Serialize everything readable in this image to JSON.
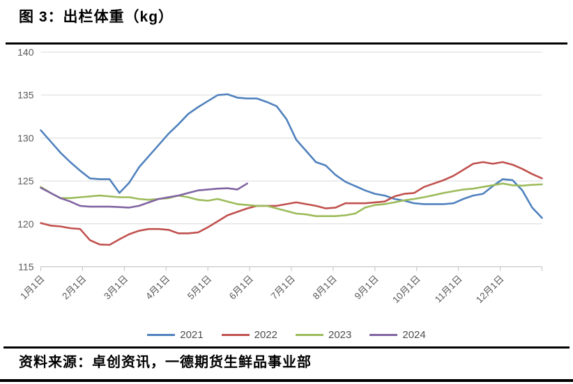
{
  "title": "图 3：出栏体重（kg）",
  "source": "资料来源：卓创资讯，一德期货生鲜品事业部",
  "colors": {
    "grid": "#d9d9d9",
    "axis": "#bfbfbf",
    "tick_text": "#595959",
    "series_2021": "#4f81bd",
    "series_2022": "#c0504d",
    "series_2023": "#9bbb59",
    "series_2024": "#8064a2"
  },
  "chart_data": {
    "type": "line",
    "title": "出栏体重（kg）",
    "grid": true,
    "legend_position": "bottom",
    "ylim": [
      115,
      140
    ],
    "y_ticks": [
      140,
      135,
      130,
      125,
      120,
      115
    ],
    "x_tick_labels": [
      "1月1日",
      "2月1日",
      "3月1日",
      "4月1日",
      "5月1日",
      "6月1日",
      "7月1日",
      "8月1日",
      "9月1日",
      "10月1日",
      "11月1日",
      "12月1日"
    ],
    "n_points": 52,
    "series": [
      {
        "name": "2021",
        "color": "#4f81bd",
        "values": [
          130.9,
          129.6,
          128.3,
          127.2,
          126.2,
          125.3,
          125.2,
          125.2,
          123.6,
          124.8,
          126.6,
          127.9,
          129.2,
          130.5,
          131.6,
          132.8,
          133.6,
          134.3,
          135.0,
          135.1,
          134.7,
          134.6,
          134.6,
          134.2,
          133.7,
          132.2,
          129.8,
          128.5,
          127.2,
          126.8,
          125.7,
          124.9,
          124.4,
          123.9,
          123.5,
          123.3,
          122.9,
          122.7,
          122.4,
          122.3,
          122.3,
          122.3,
          122.4,
          122.9,
          123.3,
          123.5,
          124.4,
          125.2,
          125.1,
          123.9,
          121.9,
          120.7
        ]
      },
      {
        "name": "2022",
        "color": "#c0504d",
        "values": [
          120.1,
          119.8,
          119.7,
          119.5,
          119.4,
          118.1,
          117.6,
          117.55,
          118.2,
          118.8,
          119.2,
          119.4,
          119.4,
          119.3,
          118.9,
          118.9,
          119.0,
          119.6,
          120.3,
          121.0,
          121.4,
          121.8,
          122.1,
          122.1,
          122.1,
          122.3,
          122.5,
          122.3,
          122.1,
          121.8,
          121.9,
          122.4,
          122.4,
          122.4,
          122.5,
          122.6,
          123.2,
          123.5,
          123.6,
          124.3,
          124.7,
          125.1,
          125.6,
          126.3,
          127.0,
          127.2,
          127.0,
          127.2,
          126.9,
          126.4,
          125.8,
          125.3
        ]
      },
      {
        "name": "2023",
        "color": "#9bbb59",
        "values": [
          124.3,
          123.6,
          123.0,
          123.0,
          123.1,
          123.2,
          123.3,
          123.2,
          123.1,
          123.1,
          122.9,
          122.8,
          122.9,
          123.0,
          123.3,
          123.1,
          122.8,
          122.7,
          122.9,
          122.6,
          122.3,
          122.2,
          122.1,
          122.1,
          121.8,
          121.5,
          121.2,
          121.1,
          120.9,
          120.9,
          120.9,
          121.0,
          121.2,
          121.9,
          122.2,
          122.3,
          122.5,
          122.75,
          122.9,
          123.1,
          123.35,
          123.6,
          123.8,
          124.0,
          124.1,
          124.3,
          124.5,
          124.7,
          124.5,
          124.45,
          124.55,
          124.6
        ]
      },
      {
        "name": "2024",
        "color": "#8064a2",
        "values": [
          124.2,
          123.6,
          123.0,
          122.6,
          122.1,
          122.0,
          122.0,
          122.0,
          121.95,
          121.9,
          122.1,
          122.5,
          122.9,
          123.1,
          123.3,
          123.6,
          123.9,
          124.0,
          124.1,
          124.15,
          124.0,
          124.7
        ]
      }
    ]
  }
}
